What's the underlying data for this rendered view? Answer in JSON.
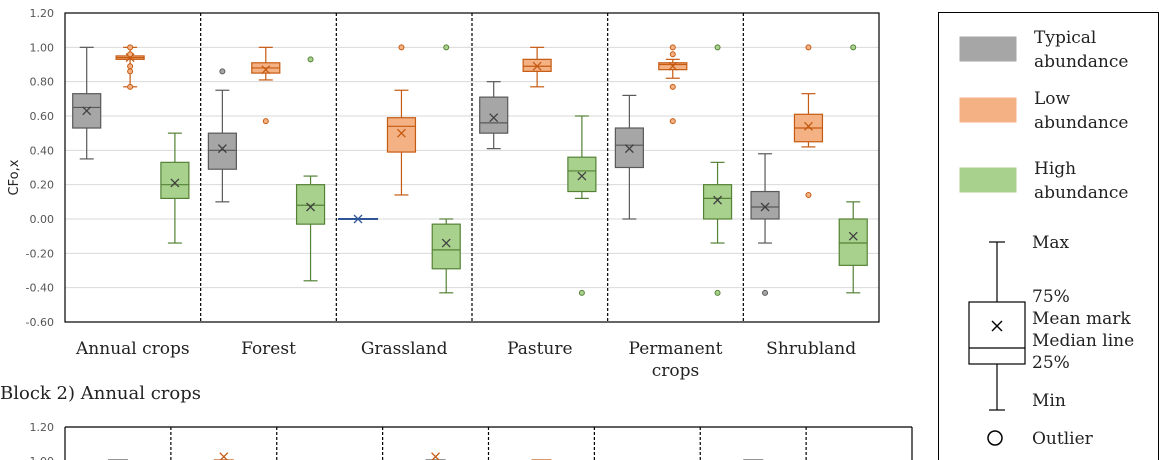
{
  "block2_title": "Block 2) Annual crops",
  "chart_data": [
    {
      "type": "box",
      "ylabel": "CFo,x",
      "ylim": [
        -0.6,
        1.2
      ],
      "yticks": [
        "1.20",
        "1.00",
        "0.80",
        "0.60",
        "0.40",
        "0.20",
        "0.00",
        "-0.20",
        "-0.40",
        "-0.60"
      ],
      "grid": true,
      "categories": [
        {
          "label": "Annual crops",
          "label_lines": [
            "Annual crops"
          ]
        },
        {
          "label": "Forest",
          "label_lines": [
            "Forest"
          ]
        },
        {
          "label": "Grassland",
          "label_lines": [
            "Grassland"
          ]
        },
        {
          "label": "Pasture",
          "label_lines": [
            "Pasture"
          ]
        },
        {
          "label": "Permanent crops",
          "label_lines": [
            "Permanent",
            "crops"
          ]
        },
        {
          "label": "Shrubland",
          "label_lines": [
            "Shrubland"
          ]
        }
      ],
      "series": [
        {
          "name": "Typical abundance",
          "color": "#a6a6a6",
          "stroke": "#595959",
          "boxes": [
            {
              "min": 0.35,
              "q1": 0.53,
              "median": 0.65,
              "q3": 0.73,
              "max": 1.0,
              "mean": 0.63,
              "outliers": []
            },
            {
              "min": 0.1,
              "q1": 0.29,
              "median": 0.4,
              "q3": 0.5,
              "max": 0.75,
              "mean": 0.41,
              "outliers": [
                0.86
              ]
            },
            {
              "min": 0.0,
              "q1": 0.0,
              "median": 0.0,
              "q3": 0.0,
              "max": 0.0,
              "mean": 0.0,
              "outliers": [],
              "color": "#4472c4",
              "stroke": "#2f5597"
            },
            {
              "min": 0.41,
              "q1": 0.5,
              "median": 0.56,
              "q3": 0.71,
              "max": 0.8,
              "mean": 0.59,
              "outliers": []
            },
            {
              "min": 0.0,
              "q1": 0.3,
              "median": 0.43,
              "q3": 0.53,
              "max": 0.72,
              "mean": 0.41,
              "outliers": []
            },
            {
              "min": -0.14,
              "q1": 0.0,
              "median": 0.07,
              "q3": 0.16,
              "max": 0.38,
              "mean": 0.07,
              "outliers": [
                -0.43
              ]
            }
          ]
        },
        {
          "name": "Low abundance",
          "color": "#f4b183",
          "stroke": "#c55a11",
          "boxes": [
            {
              "min": 0.77,
              "q1": 0.93,
              "median": 0.94,
              "q3": 0.95,
              "max": 1.0,
              "mean": 0.94,
              "outliers": [
                1.0,
                0.96,
                0.89,
                0.86,
                0.77
              ]
            },
            {
              "min": 0.81,
              "q1": 0.85,
              "median": 0.88,
              "q3": 0.91,
              "max": 1.0,
              "mean": 0.87,
              "outliers": [
                0.57
              ]
            },
            {
              "min": 0.14,
              "q1": 0.39,
              "median": 0.54,
              "q3": 0.59,
              "max": 0.75,
              "mean": 0.5,
              "outliers": [
                1.0
              ]
            },
            {
              "min": 0.77,
              "q1": 0.86,
              "median": 0.89,
              "q3": 0.93,
              "max": 1.0,
              "mean": 0.89,
              "outliers": []
            },
            {
              "min": 0.82,
              "q1": 0.87,
              "median": 0.9,
              "q3": 0.91,
              "max": 0.93,
              "mean": 0.89,
              "outliers": [
                1.0,
                0.96,
                0.77,
                0.57
              ]
            },
            {
              "min": 0.42,
              "q1": 0.45,
              "median": 0.53,
              "q3": 0.61,
              "max": 0.73,
              "mean": 0.54,
              "outliers": [
                1.0,
                0.14
              ]
            }
          ]
        },
        {
          "name": "High abundance",
          "color": "#a9d18e",
          "stroke": "#548235",
          "boxes": [
            {
              "min": -0.14,
              "q1": 0.12,
              "median": 0.2,
              "q3": 0.33,
              "max": 0.5,
              "mean": 0.21,
              "outliers": []
            },
            {
              "min": -0.36,
              "q1": -0.03,
              "median": 0.08,
              "q3": 0.2,
              "max": 0.25,
              "mean": 0.07,
              "outliers": [
                0.93
              ]
            },
            {
              "min": -0.43,
              "q1": -0.29,
              "median": -0.18,
              "q3": -0.03,
              "max": 0.0,
              "mean": -0.14,
              "outliers": [
                1.0
              ]
            },
            {
              "min": 0.12,
              "q1": 0.16,
              "median": 0.28,
              "q3": 0.36,
              "max": 0.6,
              "mean": 0.25,
              "outliers": [
                -0.43
              ]
            },
            {
              "min": -0.14,
              "q1": 0.0,
              "median": 0.12,
              "q3": 0.2,
              "max": 0.33,
              "mean": 0.11,
              "outliers": [
                1.0,
                -0.43
              ]
            },
            {
              "min": -0.43,
              "q1": -0.27,
              "median": -0.14,
              "q3": 0.0,
              "max": 0.1,
              "mean": -0.1,
              "outliers": [
                1.0
              ]
            }
          ]
        }
      ]
    },
    {
      "type": "box",
      "title": "Block 2) Annual crops",
      "ylim": [
        -0.6,
        1.2
      ],
      "yticks": [
        "1.20",
        "1.00"
      ],
      "partial": true,
      "note": "second chart cut off at bottom of screenshot",
      "category_count": 8
    }
  ],
  "legend": {
    "items": [
      {
        "name": "typical",
        "lines": [
          "Typical",
          "abundance"
        ],
        "color": "#a6a6a6",
        "stroke": "#595959"
      },
      {
        "name": "low",
        "lines": [
          "Low",
          "abundance"
        ],
        "color": "#f4b183",
        "stroke": "#c55a11"
      },
      {
        "name": "high",
        "lines": [
          "High",
          "abundance"
        ],
        "color": "#a9d18e",
        "stroke": "#548235"
      }
    ],
    "key": {
      "max": "Max",
      "q3": "75%",
      "mean": "Mean mark",
      "median": "Median line",
      "q1": "25%",
      "min": "Min",
      "outlier": "Outlier"
    }
  }
}
